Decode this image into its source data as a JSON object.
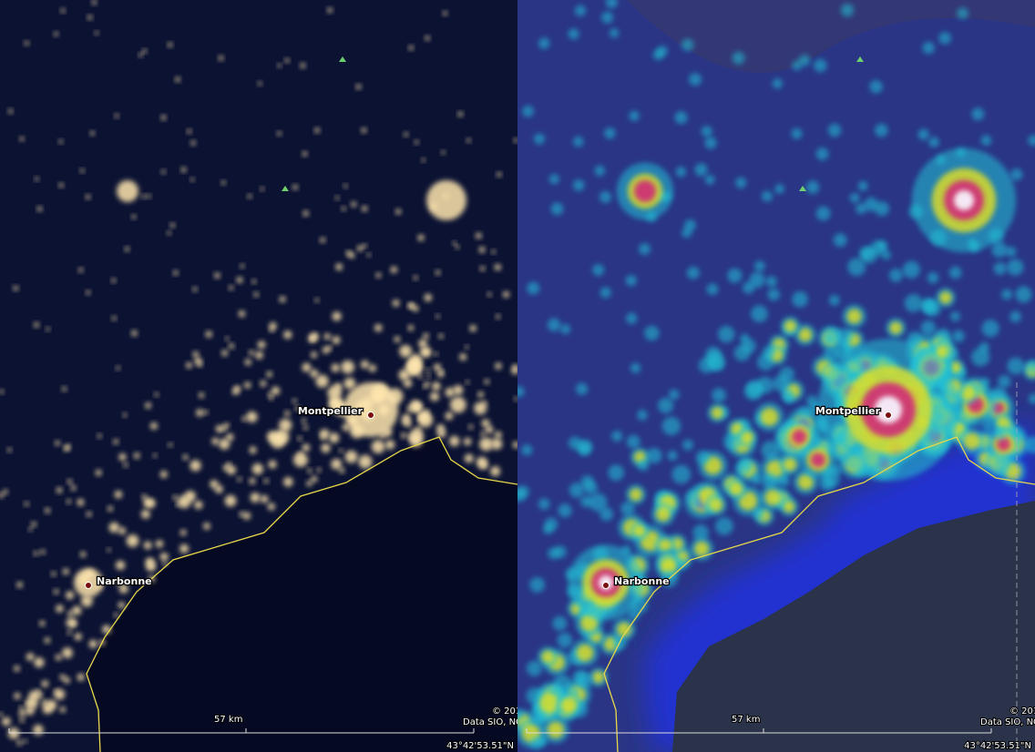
{
  "panels": [
    {
      "cities": [
        "Montpellier",
        "Narbonne"
      ],
      "scale": "57 km",
      "attribution": [
        "© 201",
        "Data SIO, NOA"
      ],
      "coordinates": "43°42'53.51\"N"
    },
    {
      "cities": [
        "Montpellier",
        "Narbonne"
      ],
      "scale": "57 km",
      "attribution": [
        "© 201",
        "Data SIO, NOA"
      ],
      "coordinates": "43°42'53.51\"N"
    }
  ]
}
